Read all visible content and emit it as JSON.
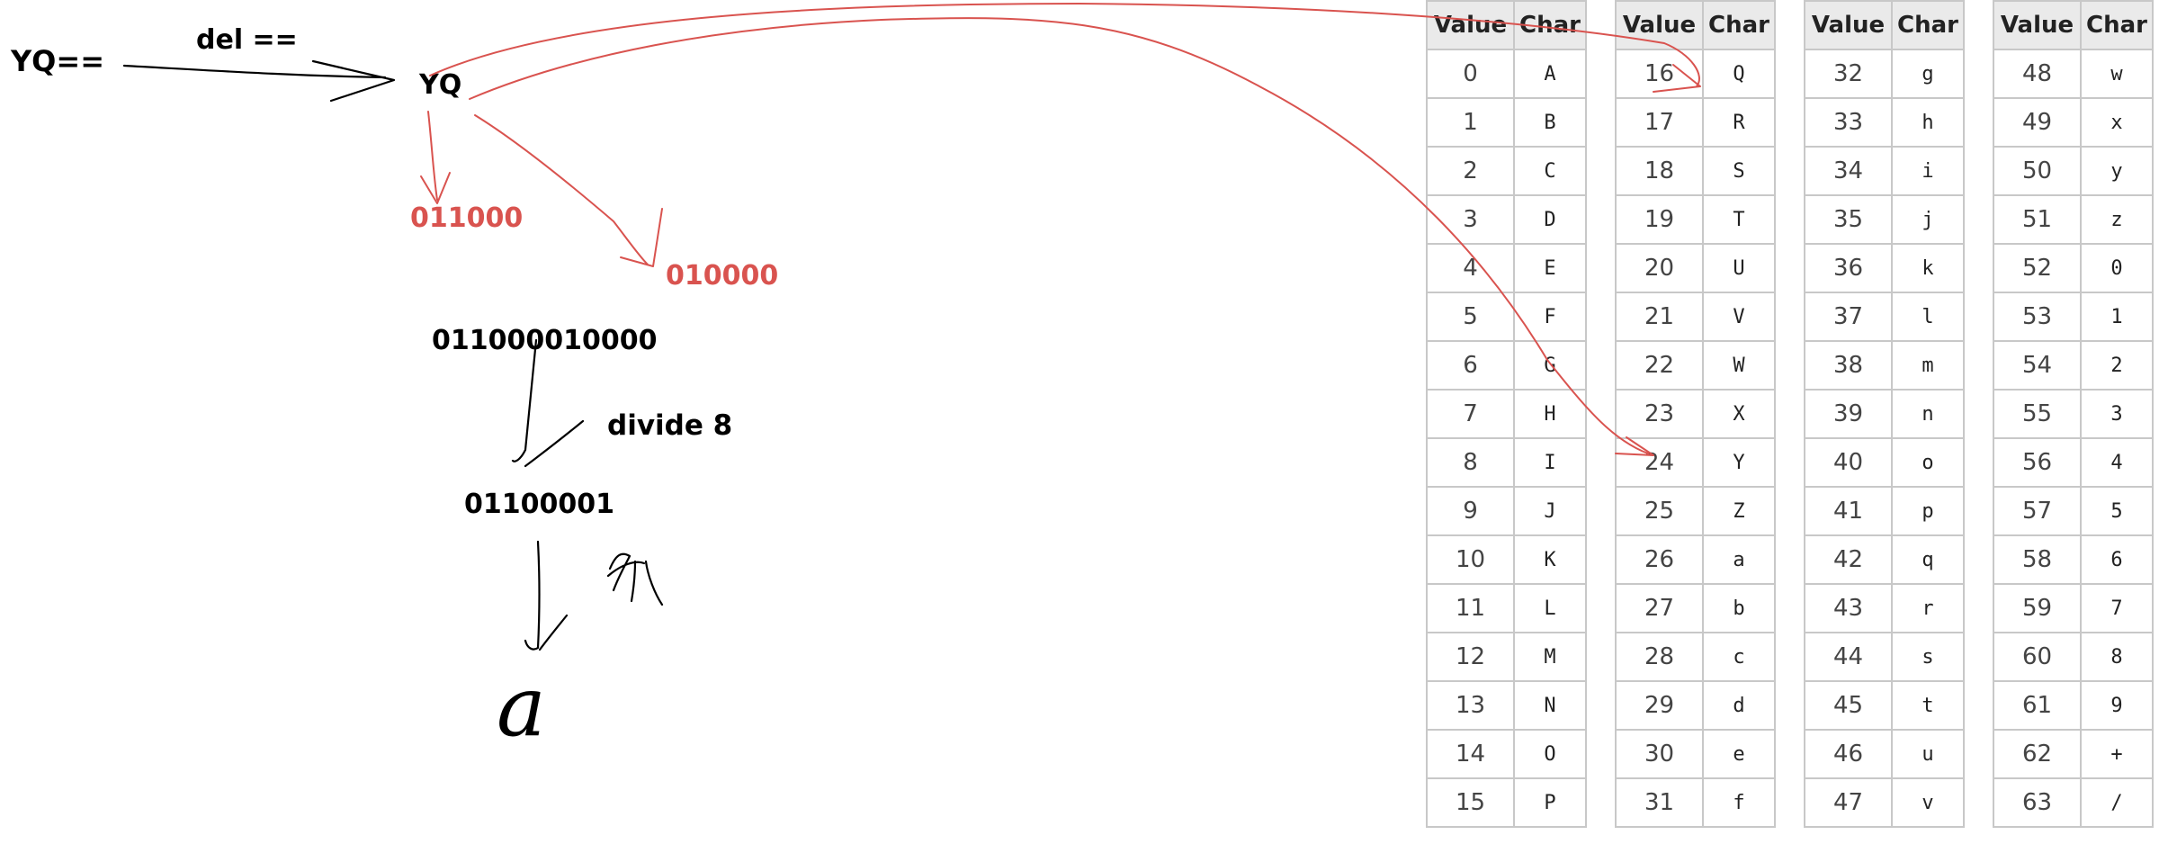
{
  "diagram": {
    "input": "YQ==",
    "step_label": "del ==",
    "stripped": "YQ",
    "bits_y": "011000",
    "bits_q": "010000",
    "joined_bits": "011000010000",
    "divide_label": "divide 8",
    "byte": "01100001",
    "result": "a"
  },
  "table": {
    "header_value": "Value",
    "header_char": "Char",
    "columns": [
      {
        "rows": [
          {
            "value": "0",
            "char": "A"
          },
          {
            "value": "1",
            "char": "B"
          },
          {
            "value": "2",
            "char": "C"
          },
          {
            "value": "3",
            "char": "D"
          },
          {
            "value": "4",
            "char": "E"
          },
          {
            "value": "5",
            "char": "F"
          },
          {
            "value": "6",
            "char": "G"
          },
          {
            "value": "7",
            "char": "H"
          },
          {
            "value": "8",
            "char": "I"
          },
          {
            "value": "9",
            "char": "J"
          },
          {
            "value": "10",
            "char": "K"
          },
          {
            "value": "11",
            "char": "L"
          },
          {
            "value": "12",
            "char": "M"
          },
          {
            "value": "13",
            "char": "N"
          },
          {
            "value": "14",
            "char": "O"
          },
          {
            "value": "15",
            "char": "P"
          }
        ]
      },
      {
        "rows": [
          {
            "value": "16",
            "char": "Q"
          },
          {
            "value": "17",
            "char": "R"
          },
          {
            "value": "18",
            "char": "S"
          },
          {
            "value": "19",
            "char": "T"
          },
          {
            "value": "20",
            "char": "U"
          },
          {
            "value": "21",
            "char": "V"
          },
          {
            "value": "22",
            "char": "W"
          },
          {
            "value": "23",
            "char": "X"
          },
          {
            "value": "24",
            "char": "Y"
          },
          {
            "value": "25",
            "char": "Z"
          },
          {
            "value": "26",
            "char": "a"
          },
          {
            "value": "27",
            "char": "b"
          },
          {
            "value": "28",
            "char": "c"
          },
          {
            "value": "29",
            "char": "d"
          },
          {
            "value": "30",
            "char": "e"
          },
          {
            "value": "31",
            "char": "f"
          }
        ]
      },
      {
        "rows": [
          {
            "value": "32",
            "char": "g"
          },
          {
            "value": "33",
            "char": "h"
          },
          {
            "value": "34",
            "char": "i"
          },
          {
            "value": "35",
            "char": "j"
          },
          {
            "value": "36",
            "char": "k"
          },
          {
            "value": "37",
            "char": "l"
          },
          {
            "value": "38",
            "char": "m"
          },
          {
            "value": "39",
            "char": "n"
          },
          {
            "value": "40",
            "char": "o"
          },
          {
            "value": "41",
            "char": "p"
          },
          {
            "value": "42",
            "char": "q"
          },
          {
            "value": "43",
            "char": "r"
          },
          {
            "value": "44",
            "char": "s"
          },
          {
            "value": "45",
            "char": "t"
          },
          {
            "value": "46",
            "char": "u"
          },
          {
            "value": "47",
            "char": "v"
          }
        ]
      },
      {
        "rows": [
          {
            "value": "48",
            "char": "w"
          },
          {
            "value": "49",
            "char": "x"
          },
          {
            "value": "50",
            "char": "y"
          },
          {
            "value": "51",
            "char": "z"
          },
          {
            "value": "52",
            "char": "0"
          },
          {
            "value": "53",
            "char": "1"
          },
          {
            "value": "54",
            "char": "2"
          },
          {
            "value": "55",
            "char": "3"
          },
          {
            "value": "56",
            "char": "4"
          },
          {
            "value": "57",
            "char": "5"
          },
          {
            "value": "58",
            "char": "6"
          },
          {
            "value": "59",
            "char": "7"
          },
          {
            "value": "60",
            "char": "8"
          },
          {
            "value": "61",
            "char": "9"
          },
          {
            "value": "62",
            "char": "+"
          },
          {
            "value": "63",
            "char": "/"
          }
        ]
      }
    ]
  },
  "colors": {
    "ink": "#000000",
    "annotation_red": "#d9534f",
    "grid": "#c8c8c8",
    "header_bg": "#eaeaea"
  }
}
